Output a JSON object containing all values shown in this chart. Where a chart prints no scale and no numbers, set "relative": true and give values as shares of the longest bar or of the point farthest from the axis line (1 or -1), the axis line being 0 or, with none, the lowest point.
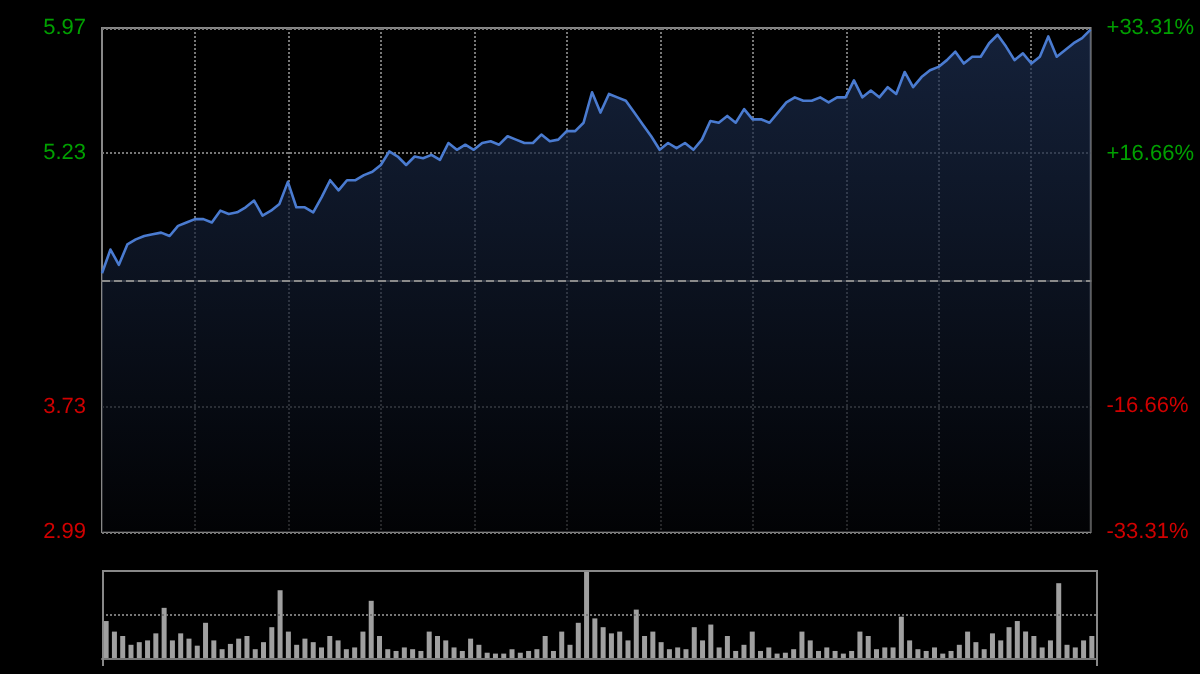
{
  "chart_data": [
    {
      "type": "area",
      "categories": [
        null,
        null,
        null,
        null,
        null,
        null,
        null,
        null,
        null,
        null,
        null,
        null,
        null,
        null,
        null,
        null,
        null,
        null,
        null,
        null,
        null,
        null,
        null,
        null,
        null,
        null,
        null,
        null,
        null,
        null,
        null,
        null,
        null,
        null,
        null,
        null,
        null,
        null,
        null,
        null,
        null,
        null,
        null,
        null,
        null,
        null,
        null,
        null,
        null,
        null,
        null,
        null,
        null,
        null,
        null,
        null,
        null,
        null,
        null,
        null,
        null,
        null,
        null,
        null,
        null,
        null,
        null,
        null,
        null,
        null,
        null,
        null,
        null,
        null,
        null,
        null,
        null,
        null,
        null,
        null,
        null,
        null,
        null,
        null,
        null,
        null,
        null,
        null,
        null,
        null,
        null,
        null,
        null,
        null,
        null,
        null,
        null,
        null,
        null,
        null,
        null,
        null,
        null,
        null,
        null,
        null,
        null,
        null,
        null,
        null,
        null,
        null,
        null,
        null,
        null,
        null,
        null,
        null
      ],
      "series": [
        {
          "color": "#4a7bd0",
          "values": [
            4.52,
            4.66,
            4.57,
            4.69,
            4.72,
            4.74,
            4.75,
            4.76,
            4.74,
            4.8,
            4.82,
            4.84,
            4.84,
            4.82,
            4.89,
            4.87,
            4.88,
            4.91,
            4.95,
            4.86,
            4.89,
            4.93,
            5.06,
            4.91,
            4.91,
            4.88,
            4.97,
            5.07,
            5.01,
            5.07,
            5.07,
            5.1,
            5.12,
            5.16,
            5.24,
            5.21,
            5.16,
            5.21,
            5.2,
            5.22,
            5.19,
            5.29,
            5.25,
            5.28,
            5.25,
            5.29,
            5.3,
            5.28,
            5.33,
            5.31,
            5.29,
            5.29,
            5.34,
            5.3,
            5.31,
            5.36,
            5.36,
            5.41,
            5.59,
            5.47,
            5.58,
            5.56,
            5.54,
            5.47,
            5.4,
            5.33,
            5.25,
            5.29,
            5.26,
            5.29,
            5.25,
            5.31,
            5.42,
            5.41,
            5.45,
            5.41,
            5.49,
            5.43,
            5.43,
            5.41,
            5.47,
            5.53,
            5.56,
            5.54,
            5.54,
            5.56,
            5.53,
            5.56,
            5.56,
            5.66,
            5.56,
            5.6,
            5.56,
            5.62,
            5.58,
            5.71,
            5.62,
            5.68,
            5.72,
            5.74,
            5.78,
            5.83,
            5.76,
            5.8,
            5.8,
            5.88,
            5.93,
            5.86,
            5.78,
            5.82,
            5.76,
            5.8,
            5.92,
            5.8,
            5.84,
            5.88,
            5.91,
            5.96
          ]
        }
      ],
      "ylim": [
        2.99,
        5.97
      ],
      "yticks": [
        5.97,
        5.23,
        3.73,
        2.99
      ],
      "y2lim": [
        -33.31,
        33.31
      ],
      "y2ticks": [
        {
          "value": 33.31,
          "label": "+33.31%"
        },
        {
          "value": 16.66,
          "label": "+16.66%"
        },
        {
          "value": -16.66,
          "label": "-16.66%"
        },
        {
          "value": -33.31,
          "label": "-33.31%"
        }
      ],
      "ref_lines": [
        {
          "axis": "y",
          "value": 4.48,
          "color": "#8a8a8a",
          "line_style": "dashed"
        }
      ],
      "grid": true
    },
    {
      "type": "bar",
      "relative": true,
      "color": "#a0a0a0",
      "ref_lines": [
        {
          "axis": "y",
          "value": 0.5,
          "color": "#777777",
          "line_style": "dotted"
        }
      ],
      "categories": [
        null,
        null,
        null,
        null,
        null,
        null,
        null,
        null,
        null,
        null,
        null,
        null,
        null,
        null,
        null,
        null,
        null,
        null,
        null,
        null,
        null,
        null,
        null,
        null,
        null,
        null,
        null,
        null,
        null,
        null,
        null,
        null,
        null,
        null,
        null,
        null,
        null,
        null,
        null,
        null,
        null,
        null,
        null,
        null,
        null,
        null,
        null,
        null,
        null,
        null,
        null,
        null,
        null,
        null,
        null,
        null,
        null,
        null,
        null,
        null,
        null,
        null,
        null,
        null,
        null,
        null,
        null,
        null,
        null,
        null,
        null,
        null,
        null,
        null,
        null,
        null,
        null,
        null,
        null,
        null,
        null,
        null,
        null,
        null,
        null,
        null,
        null,
        null,
        null,
        null,
        null,
        null,
        null,
        null,
        null,
        null,
        null,
        null,
        null,
        null,
        null,
        null,
        null,
        null,
        null,
        null,
        null,
        null,
        null,
        null,
        null,
        null,
        null,
        null,
        null,
        null,
        null,
        null,
        null,
        null
      ],
      "values": [
        0.42,
        0.3,
        0.25,
        0.15,
        0.18,
        0.2,
        0.28,
        0.57,
        0.2,
        0.28,
        0.22,
        0.14,
        0.4,
        0.2,
        0.1,
        0.16,
        0.22,
        0.25,
        0.1,
        0.18,
        0.35,
        0.77,
        0.3,
        0.15,
        0.22,
        0.18,
        0.12,
        0.25,
        0.2,
        0.1,
        0.12,
        0.3,
        0.65,
        0.25,
        0.1,
        0.08,
        0.12,
        0.1,
        0.08,
        0.3,
        0.25,
        0.2,
        0.12,
        0.08,
        0.22,
        0.15,
        0.06,
        0.05,
        0.05,
        0.1,
        0.06,
        0.08,
        0.1,
        0.25,
        0.08,
        0.3,
        0.15,
        0.4,
        1.0,
        0.45,
        0.35,
        0.28,
        0.3,
        0.2,
        0.55,
        0.25,
        0.3,
        0.18,
        0.1,
        0.12,
        0.1,
        0.35,
        0.2,
        0.38,
        0.12,
        0.25,
        0.08,
        0.15,
        0.3,
        0.08,
        0.12,
        0.05,
        0.06,
        0.1,
        0.3,
        0.2,
        0.08,
        0.12,
        0.08,
        0.05,
        0.08,
        0.3,
        0.25,
        0.1,
        0.12,
        0.12,
        0.47,
        0.2,
        0.1,
        0.08,
        0.12,
        0.05,
        0.08,
        0.15,
        0.3,
        0.18,
        0.1,
        0.28,
        0.2,
        0.35,
        0.42,
        0.3,
        0.25,
        0.12,
        0.2,
        0.85,
        0.15,
        0.12,
        0.2,
        0.25
      ]
    }
  ]
}
